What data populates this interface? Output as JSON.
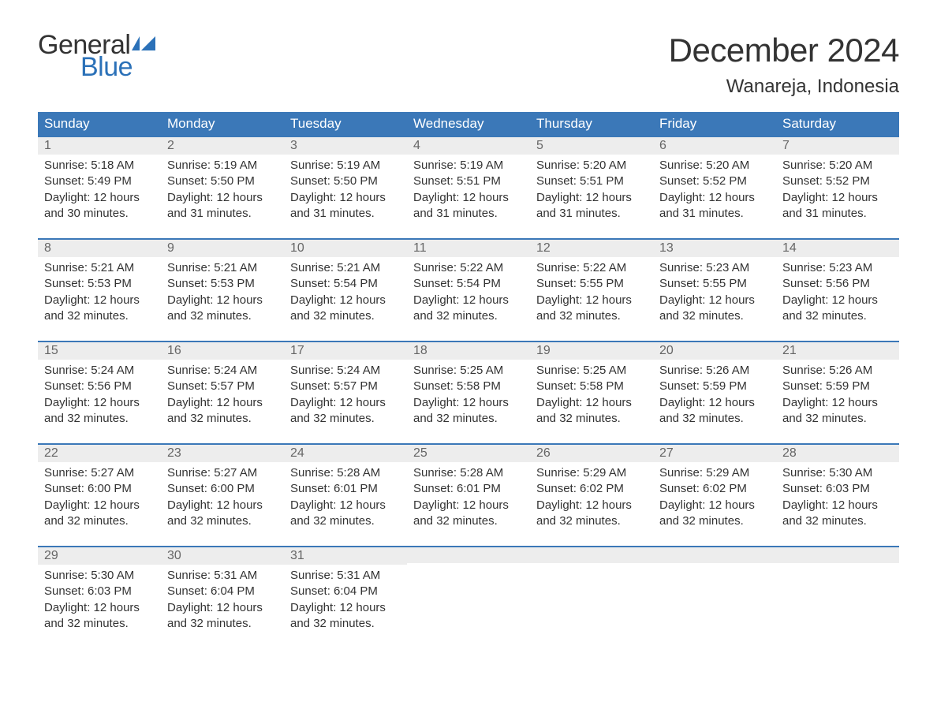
{
  "brand": {
    "line1": "General",
    "line2": "Blue",
    "flag_color": "#2b71b8",
    "text_gray": "#333333"
  },
  "title": "December 2024",
  "location": "Wanareja, Indonesia",
  "colors": {
    "header_bg": "#3b78b8",
    "header_text": "#ffffff",
    "daynum_bg": "#ededed",
    "daynum_text": "#666666",
    "cell_border_top": "#3b78b8",
    "body_text": "#333333",
    "page_bg": "#ffffff"
  },
  "typography": {
    "title_fontsize": 42,
    "location_fontsize": 24,
    "header_fontsize": 17,
    "daynum_fontsize": 16,
    "body_fontsize": 15,
    "logo_fontsize": 34
  },
  "columns": [
    "Sunday",
    "Monday",
    "Tuesday",
    "Wednesday",
    "Thursday",
    "Friday",
    "Saturday"
  ],
  "weeks": [
    [
      {
        "n": "1",
        "sr": "Sunrise: 5:18 AM",
        "ss": "Sunset: 5:49 PM",
        "d1": "Daylight: 12 hours",
        "d2": "and 30 minutes."
      },
      {
        "n": "2",
        "sr": "Sunrise: 5:19 AM",
        "ss": "Sunset: 5:50 PM",
        "d1": "Daylight: 12 hours",
        "d2": "and 31 minutes."
      },
      {
        "n": "3",
        "sr": "Sunrise: 5:19 AM",
        "ss": "Sunset: 5:50 PM",
        "d1": "Daylight: 12 hours",
        "d2": "and 31 minutes."
      },
      {
        "n": "4",
        "sr": "Sunrise: 5:19 AM",
        "ss": "Sunset: 5:51 PM",
        "d1": "Daylight: 12 hours",
        "d2": "and 31 minutes."
      },
      {
        "n": "5",
        "sr": "Sunrise: 5:20 AM",
        "ss": "Sunset: 5:51 PM",
        "d1": "Daylight: 12 hours",
        "d2": "and 31 minutes."
      },
      {
        "n": "6",
        "sr": "Sunrise: 5:20 AM",
        "ss": "Sunset: 5:52 PM",
        "d1": "Daylight: 12 hours",
        "d2": "and 31 minutes."
      },
      {
        "n": "7",
        "sr": "Sunrise: 5:20 AM",
        "ss": "Sunset: 5:52 PM",
        "d1": "Daylight: 12 hours",
        "d2": "and 31 minutes."
      }
    ],
    [
      {
        "n": "8",
        "sr": "Sunrise: 5:21 AM",
        "ss": "Sunset: 5:53 PM",
        "d1": "Daylight: 12 hours",
        "d2": "and 32 minutes."
      },
      {
        "n": "9",
        "sr": "Sunrise: 5:21 AM",
        "ss": "Sunset: 5:53 PM",
        "d1": "Daylight: 12 hours",
        "d2": "and 32 minutes."
      },
      {
        "n": "10",
        "sr": "Sunrise: 5:21 AM",
        "ss": "Sunset: 5:54 PM",
        "d1": "Daylight: 12 hours",
        "d2": "and 32 minutes."
      },
      {
        "n": "11",
        "sr": "Sunrise: 5:22 AM",
        "ss": "Sunset: 5:54 PM",
        "d1": "Daylight: 12 hours",
        "d2": "and 32 minutes."
      },
      {
        "n": "12",
        "sr": "Sunrise: 5:22 AM",
        "ss": "Sunset: 5:55 PM",
        "d1": "Daylight: 12 hours",
        "d2": "and 32 minutes."
      },
      {
        "n": "13",
        "sr": "Sunrise: 5:23 AM",
        "ss": "Sunset: 5:55 PM",
        "d1": "Daylight: 12 hours",
        "d2": "and 32 minutes."
      },
      {
        "n": "14",
        "sr": "Sunrise: 5:23 AM",
        "ss": "Sunset: 5:56 PM",
        "d1": "Daylight: 12 hours",
        "d2": "and 32 minutes."
      }
    ],
    [
      {
        "n": "15",
        "sr": "Sunrise: 5:24 AM",
        "ss": "Sunset: 5:56 PM",
        "d1": "Daylight: 12 hours",
        "d2": "and 32 minutes."
      },
      {
        "n": "16",
        "sr": "Sunrise: 5:24 AM",
        "ss": "Sunset: 5:57 PM",
        "d1": "Daylight: 12 hours",
        "d2": "and 32 minutes."
      },
      {
        "n": "17",
        "sr": "Sunrise: 5:24 AM",
        "ss": "Sunset: 5:57 PM",
        "d1": "Daylight: 12 hours",
        "d2": "and 32 minutes."
      },
      {
        "n": "18",
        "sr": "Sunrise: 5:25 AM",
        "ss": "Sunset: 5:58 PM",
        "d1": "Daylight: 12 hours",
        "d2": "and 32 minutes."
      },
      {
        "n": "19",
        "sr": "Sunrise: 5:25 AM",
        "ss": "Sunset: 5:58 PM",
        "d1": "Daylight: 12 hours",
        "d2": "and 32 minutes."
      },
      {
        "n": "20",
        "sr": "Sunrise: 5:26 AM",
        "ss": "Sunset: 5:59 PM",
        "d1": "Daylight: 12 hours",
        "d2": "and 32 minutes."
      },
      {
        "n": "21",
        "sr": "Sunrise: 5:26 AM",
        "ss": "Sunset: 5:59 PM",
        "d1": "Daylight: 12 hours",
        "d2": "and 32 minutes."
      }
    ],
    [
      {
        "n": "22",
        "sr": "Sunrise: 5:27 AM",
        "ss": "Sunset: 6:00 PM",
        "d1": "Daylight: 12 hours",
        "d2": "and 32 minutes."
      },
      {
        "n": "23",
        "sr": "Sunrise: 5:27 AM",
        "ss": "Sunset: 6:00 PM",
        "d1": "Daylight: 12 hours",
        "d2": "and 32 minutes."
      },
      {
        "n": "24",
        "sr": "Sunrise: 5:28 AM",
        "ss": "Sunset: 6:01 PM",
        "d1": "Daylight: 12 hours",
        "d2": "and 32 minutes."
      },
      {
        "n": "25",
        "sr": "Sunrise: 5:28 AM",
        "ss": "Sunset: 6:01 PM",
        "d1": "Daylight: 12 hours",
        "d2": "and 32 minutes."
      },
      {
        "n": "26",
        "sr": "Sunrise: 5:29 AM",
        "ss": "Sunset: 6:02 PM",
        "d1": "Daylight: 12 hours",
        "d2": "and 32 minutes."
      },
      {
        "n": "27",
        "sr": "Sunrise: 5:29 AM",
        "ss": "Sunset: 6:02 PM",
        "d1": "Daylight: 12 hours",
        "d2": "and 32 minutes."
      },
      {
        "n": "28",
        "sr": "Sunrise: 5:30 AM",
        "ss": "Sunset: 6:03 PM",
        "d1": "Daylight: 12 hours",
        "d2": "and 32 minutes."
      }
    ],
    [
      {
        "n": "29",
        "sr": "Sunrise: 5:30 AM",
        "ss": "Sunset: 6:03 PM",
        "d1": "Daylight: 12 hours",
        "d2": "and 32 minutes."
      },
      {
        "n": "30",
        "sr": "Sunrise: 5:31 AM",
        "ss": "Sunset: 6:04 PM",
        "d1": "Daylight: 12 hours",
        "d2": "and 32 minutes."
      },
      {
        "n": "31",
        "sr": "Sunrise: 5:31 AM",
        "ss": "Sunset: 6:04 PM",
        "d1": "Daylight: 12 hours",
        "d2": "and 32 minutes."
      },
      null,
      null,
      null,
      null
    ]
  ]
}
